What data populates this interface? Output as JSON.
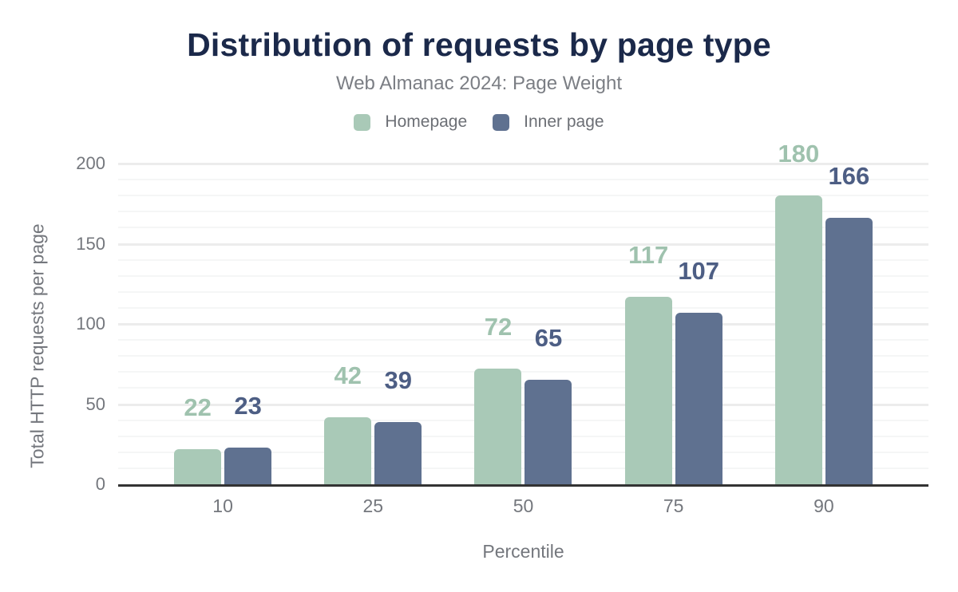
{
  "chart_data": {
    "type": "bar",
    "title": "Distribution of requests by page type",
    "subtitle": "Web Almanac 2024: Page Weight",
    "xlabel": "Percentile",
    "ylabel": "Total HTTP requests per page",
    "categories": [
      "10",
      "25",
      "50",
      "75",
      "90"
    ],
    "series": [
      {
        "name": "Homepage",
        "color": "#a9c9b7",
        "label_color": "#9fc2ae",
        "values": [
          22,
          42,
          72,
          117,
          180
        ]
      },
      {
        "name": "Inner page",
        "color": "#5f7190",
        "label_color": "#4d5e84",
        "values": [
          23,
          39,
          65,
          107,
          166
        ]
      }
    ],
    "ylim": [
      0,
      200
    ],
    "y_ticks": [
      0,
      50,
      100,
      150,
      200
    ],
    "y_minor_step": 10,
    "grid": true,
    "legend_position": "top",
    "bar_value_labels": true,
    "axis_line_color": "#333333",
    "title_color": "#1b294a"
  }
}
